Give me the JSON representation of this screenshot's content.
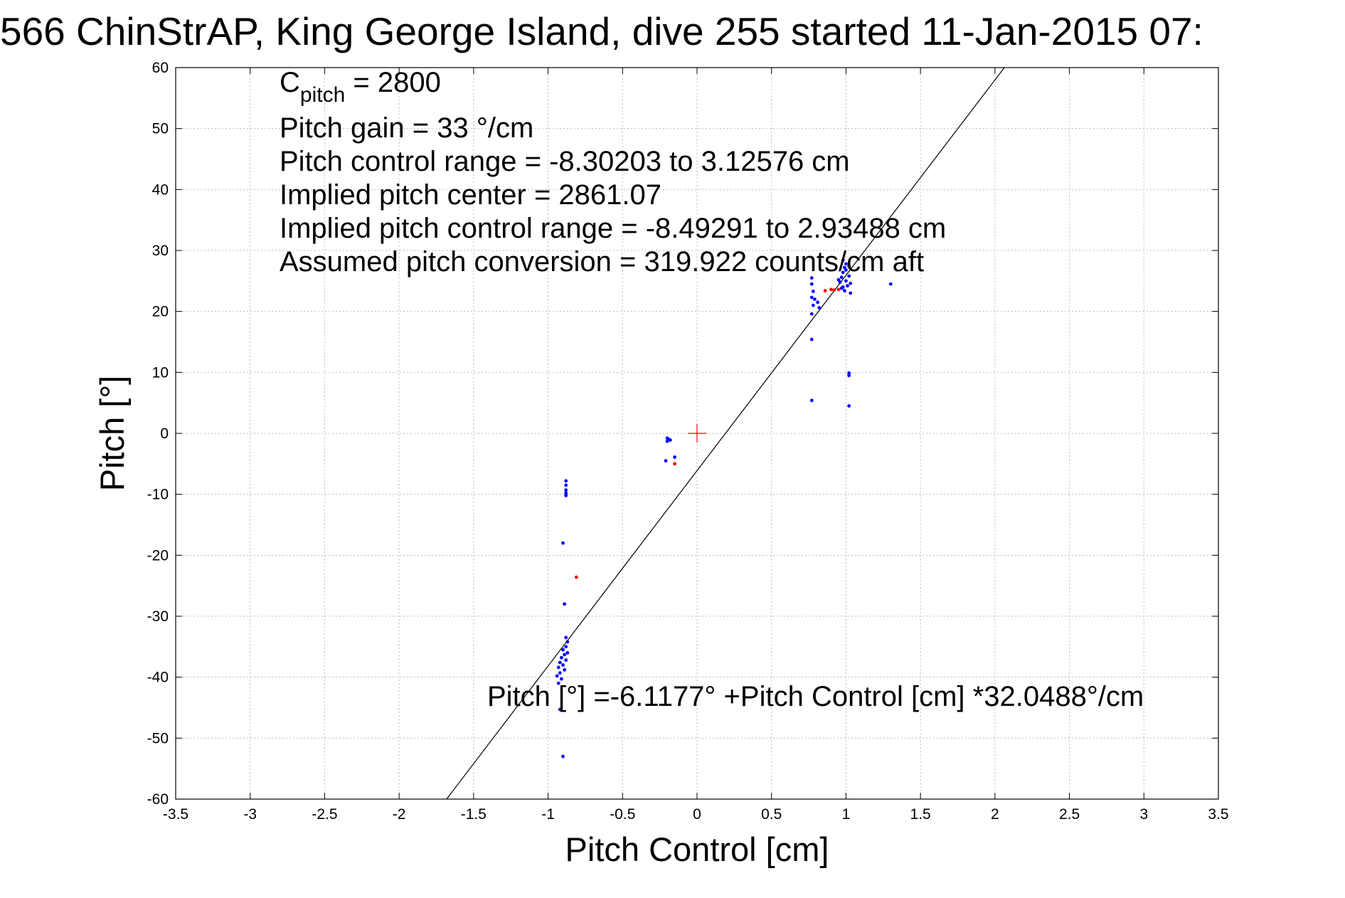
{
  "chart_data": {
    "type": "scatter",
    "title": "566 ChinStrAP, King George Island, dive 255 started 11-Jan-2015 07:",
    "xlabel": "Pitch Control [cm]",
    "ylabel": "Pitch [°]",
    "xlim": [
      -3.5,
      3.5
    ],
    "ylim": [
      -60,
      60
    ],
    "grid": true,
    "x_ticks": [
      "-3.5",
      "-3",
      "-2.5",
      "-2",
      "-1.5",
      "-1",
      "-0.5",
      "0",
      "0.5",
      "1",
      "1.5",
      "2",
      "2.5",
      "3",
      "3.5"
    ],
    "y_ticks": [
      "60",
      "50",
      "40",
      "30",
      "20",
      "10",
      "0",
      "-10",
      "-20",
      "-30",
      "-40",
      "-50",
      "-60"
    ],
    "annotations": {
      "c_pitch_main": "C",
      "c_pitch_sub": "pitch",
      "c_pitch_value": " = 2800",
      "pitch_gain": "Pitch gain = 33 °/cm",
      "control_range": "Pitch control range = -8.30203 to 3.12576 cm",
      "implied_center": "Implied pitch center = 2861.07",
      "implied_range": "Implied pitch control range = -8.49291 to 2.93488 cm",
      "conversion": "Assumed pitch conversion = 319.922 counts/cm aft",
      "fit_equation": "Pitch [°] =-6.1177° +Pitch Control [cm] *32.0488°/cm"
    },
    "fit_line": {
      "intercept": -6.1177,
      "slope": 32.0488,
      "color": "#000000"
    },
    "center_marker": {
      "x": 0,
      "y": 0,
      "color": "#ff0000"
    },
    "series": [
      {
        "color": "#0000ff",
        "points": [
          [
            -0.88,
            -7.8
          ],
          [
            -0.88,
            -8.5
          ],
          [
            -0.88,
            -9.3
          ],
          [
            -0.88,
            -9.8
          ],
          [
            -0.88,
            -10.2
          ],
          [
            -0.9,
            -18
          ],
          [
            -0.89,
            -28
          ],
          [
            -0.88,
            -33.5
          ],
          [
            -0.87,
            -34.2
          ],
          [
            -0.88,
            -35.0
          ],
          [
            -0.9,
            -35.5
          ],
          [
            -0.87,
            -36.0
          ],
          [
            -0.89,
            -36.3
          ],
          [
            -0.91,
            -36.8
          ],
          [
            -0.88,
            -37.2
          ],
          [
            -0.92,
            -37.6
          ],
          [
            -0.9,
            -38.0
          ],
          [
            -0.93,
            -38.4
          ],
          [
            -0.89,
            -38.8
          ],
          [
            -0.92,
            -39.3
          ],
          [
            -0.94,
            -39.8
          ],
          [
            -0.91,
            -40.3
          ],
          [
            -0.93,
            -41.0
          ],
          [
            -0.92,
            -45.3
          ],
          [
            -0.9,
            -53
          ],
          [
            -0.2,
            -0.8
          ],
          [
            -0.19,
            -1.0
          ],
          [
            -0.2,
            -1.3
          ],
          [
            -0.18,
            -1.1
          ],
          [
            -0.21,
            -4.5
          ],
          [
            -0.15,
            -3.9
          ],
          [
            0.77,
            25.5
          ],
          [
            0.77,
            24.5
          ],
          [
            0.78,
            23.3
          ],
          [
            0.77,
            22.3
          ],
          [
            0.79,
            22.0
          ],
          [
            0.78,
            21.0
          ],
          [
            0.81,
            21.5
          ],
          [
            0.82,
            20.6
          ],
          [
            0.77,
            19.6
          ],
          [
            0.77,
            15.4
          ],
          [
            0.77,
            5.4
          ],
          [
            0.96,
            24.8
          ],
          [
            0.97,
            25.6
          ],
          [
            0.98,
            26.4
          ],
          [
            0.99,
            27.2
          ],
          [
            1.0,
            27.8
          ],
          [
            0.98,
            28.4
          ],
          [
            1.0,
            26.8
          ],
          [
            1.02,
            25.8
          ],
          [
            1.01,
            24.2
          ],
          [
            0.99,
            23.4
          ],
          [
            1.03,
            24.6
          ],
          [
            0.95,
            25.2
          ],
          [
            1.0,
            25.0
          ],
          [
            0.98,
            24.0
          ],
          [
            1.02,
            27.4
          ],
          [
            1.03,
            23.0
          ],
          [
            0.97,
            23.8
          ],
          [
            1.3,
            24.5
          ],
          [
            1.02,
            9.9
          ],
          [
            1.02,
            9.5
          ],
          [
            1.02,
            4.5
          ]
        ]
      },
      {
        "color": "#ff0000",
        "points": [
          [
            -0.81,
            -23.6
          ],
          [
            -0.15,
            -5.0
          ],
          [
            0.9,
            23.6
          ],
          [
            0.92,
            23.5
          ],
          [
            0.95,
            23.6
          ],
          [
            0.86,
            23.4
          ]
        ]
      }
    ]
  }
}
